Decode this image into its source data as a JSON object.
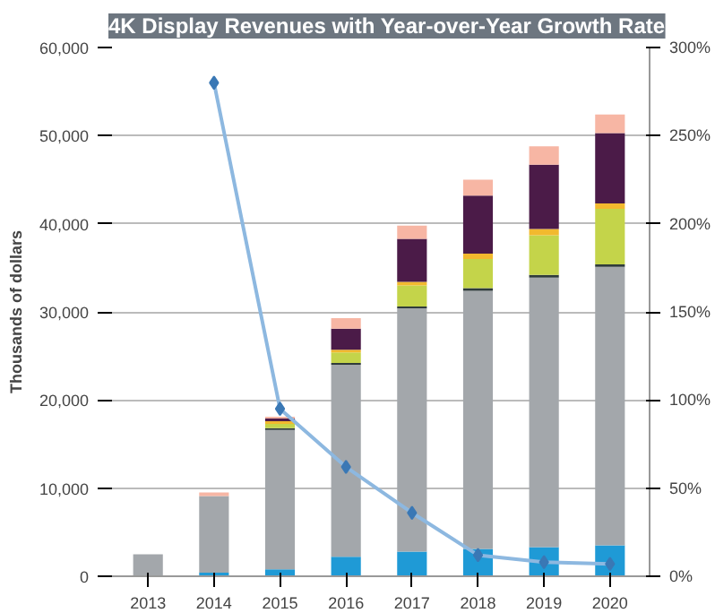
{
  "chart_data": {
    "type": "bar",
    "title": "4K Display Revenues with Year-over-Year Growth Rate",
    "ylabel": "Thousands of dollars",
    "categories": [
      "2013",
      "2014",
      "2015",
      "2016",
      "2017",
      "2018",
      "2019",
      "2020"
    ],
    "stacked": true,
    "series": [
      {
        "color": "#1f9ad6",
        "values": [
          0,
          400,
          800,
          2200,
          2800,
          3100,
          3300,
          3500
        ]
      },
      {
        "color": "#a3a7ab",
        "values": [
          2500,
          8700,
          15800,
          21800,
          27600,
          29300,
          30600,
          31600
        ]
      },
      {
        "color": "#2f3b3b",
        "values": [
          0,
          0,
          200,
          200,
          200,
          300,
          300,
          300
        ]
      },
      {
        "color": "#c4d44a",
        "values": [
          0,
          0,
          500,
          1200,
          2400,
          3300,
          4500,
          6300
        ]
      },
      {
        "color": "#f2b92e",
        "values": [
          0,
          0,
          300,
          300,
          400,
          600,
          700,
          600
        ]
      },
      {
        "color": "#4b1b48",
        "values": [
          0,
          0,
          300,
          2400,
          4900,
          6600,
          7300,
          8000
        ]
      },
      {
        "color": "#f7b6a4",
        "values": [
          0,
          400,
          200,
          1200,
          1500,
          1800,
          2100,
          2100
        ]
      },
      {
        "type": "line",
        "axis": "y2",
        "color": "#8db8e0",
        "marker": "diamond",
        "values": [
          null,
          280,
          95,
          62,
          36,
          12,
          8,
          7
        ]
      }
    ],
    "ylim": [
      0,
      60000
    ],
    "yticks": [
      {
        "value": 0,
        "label": "0"
      },
      {
        "value": 10000,
        "label": "10,000"
      },
      {
        "value": 20000,
        "label": "20,000"
      },
      {
        "value": 30000,
        "label": "30,000"
      },
      {
        "value": 40000,
        "label": "40,000"
      },
      {
        "value": 50000,
        "label": "50,000"
      },
      {
        "value": 60000,
        "label": "60,000"
      }
    ],
    "y2lim": [
      0,
      300
    ],
    "y2ticks": [
      {
        "value": 0,
        "label": "0%"
      },
      {
        "value": 50,
        "label": "50%"
      },
      {
        "value": 100,
        "label": "100%"
      },
      {
        "value": 150,
        "label": "150%"
      },
      {
        "value": 200,
        "label": "200%"
      },
      {
        "value": 250,
        "label": "250%"
      },
      {
        "value": 300,
        "label": "300%"
      }
    ],
    "grid": "y"
  }
}
